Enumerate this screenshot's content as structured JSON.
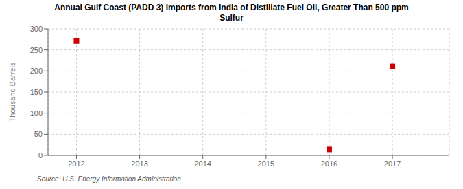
{
  "chart_data": {
    "type": "scatter",
    "title": "Annual Gulf Coast (PADD 3) Imports from India of Distillate Fuel Oil, Greater Than 500 ppm\nSulfur",
    "ylabel": "Thousand Barrels",
    "annotations": [
      "Source: U.S. Energy Information Administration"
    ],
    "x": [
      2012,
      2016,
      2017
    ],
    "values": [
      271,
      14,
      211
    ],
    "xlim": [
      2011.55,
      2017.9
    ],
    "xticks": [
      2012,
      2013,
      2014,
      2015,
      2016,
      2017
    ],
    "ylim": [
      0,
      300
    ],
    "yticks": [
      0,
      50,
      100,
      150,
      200,
      250,
      300
    ],
    "grid": true,
    "color": "#cc0000",
    "marker": "square"
  }
}
